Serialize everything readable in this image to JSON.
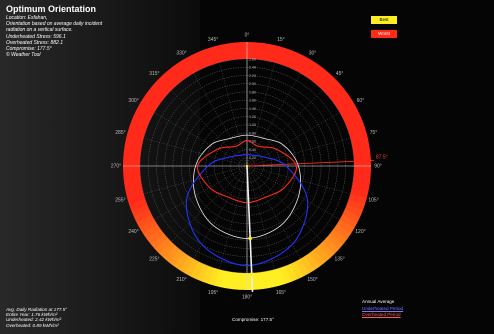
{
  "panel": {
    "title": "Optimum Orientation",
    "location": "Location: Esfahan,",
    "description_1": "Orientation based on average daily incident",
    "description_2": "radiation on a vertical surface.",
    "underheated": "Underheated Stress: 596.1",
    "overheated": "Overheated Stress: 882.1",
    "compromise": "Compromise: 177.5°",
    "credit": "© Weather Tool"
  },
  "footer": {
    "avg_radiation": "Avg. Daily Radiation at 177.5°",
    "entire_year": "Entire Year: 1.76 kWh/m²",
    "underheated": "Underheated: 2.42 kWh/m²",
    "overheated": "Overheated: 0.89 kWh/m²"
  },
  "legend": {
    "best": "Best",
    "worst": "Worst",
    "annual_average": "Annual Average",
    "underheated_period": "Underheated Period",
    "overheated_period": "Overheated Period"
  },
  "compromise_label": "Compromise: 177.5°",
  "highlight_angle_label": "87.5°",
  "colors": {
    "best": "#ffee22",
    "worst": "#ff2a1a",
    "annual": "#e8e8e8",
    "underheated": "#2233ff",
    "overheated": "#ff2a1a",
    "grid": "#6b6b6b"
  },
  "chart_data": {
    "type": "polar",
    "title": "Optimum Orientation",
    "angle_ticks": [
      0,
      15,
      30,
      45,
      60,
      75,
      90,
      105,
      120,
      135,
      150,
      165,
      180,
      195,
      210,
      225,
      240,
      255,
      270,
      285,
      300,
      315,
      330,
      345
    ],
    "angle_labels": [
      "0°",
      "15°",
      "30°",
      "45°",
      "60°",
      "75°",
      "90°",
      "105°",
      "120°",
      "135°",
      "150°",
      "165°",
      "180°",
      "195°",
      "210°",
      "225°",
      "240°",
      "255°",
      "270°",
      "285°",
      "300°",
      "315°",
      "330°",
      "345°"
    ],
    "radial_range": [
      0,
      2.6
    ],
    "radial_ticks": [
      0.2,
      0.4,
      0.6,
      0.8,
      1.0,
      1.2,
      1.4,
      1.6,
      1.8,
      2.0,
      2.2,
      2.4,
      2.6
    ],
    "radial_labels": [
      "0.20",
      "0.40",
      "0.60",
      "0.80",
      "1.00",
      "1.20",
      "1.40",
      "1.60",
      "1.80",
      "2.00",
      "2.20",
      "2.40",
      "2.60"
    ],
    "compromise_angle": 177.5,
    "highlight_angle": 87.5,
    "series": [
      {
        "name": "Annual Average",
        "angles": [
          0,
          30,
          60,
          90,
          120,
          150,
          180,
          210,
          240,
          270,
          300,
          330
        ],
        "values": [
          0.75,
          0.78,
          1.02,
          1.25,
          1.45,
          1.66,
          1.76,
          1.66,
          1.45,
          1.25,
          1.02,
          0.78
        ]
      },
      {
        "name": "Underheated Period",
        "angles": [
          0,
          30,
          60,
          90,
          120,
          150,
          180,
          210,
          240,
          270,
          300,
          330
        ],
        "values": [
          0.28,
          0.3,
          0.45,
          0.95,
          1.7,
          2.2,
          2.42,
          2.2,
          1.7,
          0.95,
          0.45,
          0.3
        ]
      },
      {
        "name": "Overheated Period",
        "angles": [
          0,
          30,
          60,
          90,
          120,
          150,
          180,
          210,
          240,
          270,
          300,
          330
        ],
        "values": [
          0.62,
          0.55,
          0.82,
          1.2,
          1.05,
          0.88,
          0.89,
          0.88,
          1.05,
          1.2,
          0.82,
          0.55
        ]
      }
    ]
  }
}
